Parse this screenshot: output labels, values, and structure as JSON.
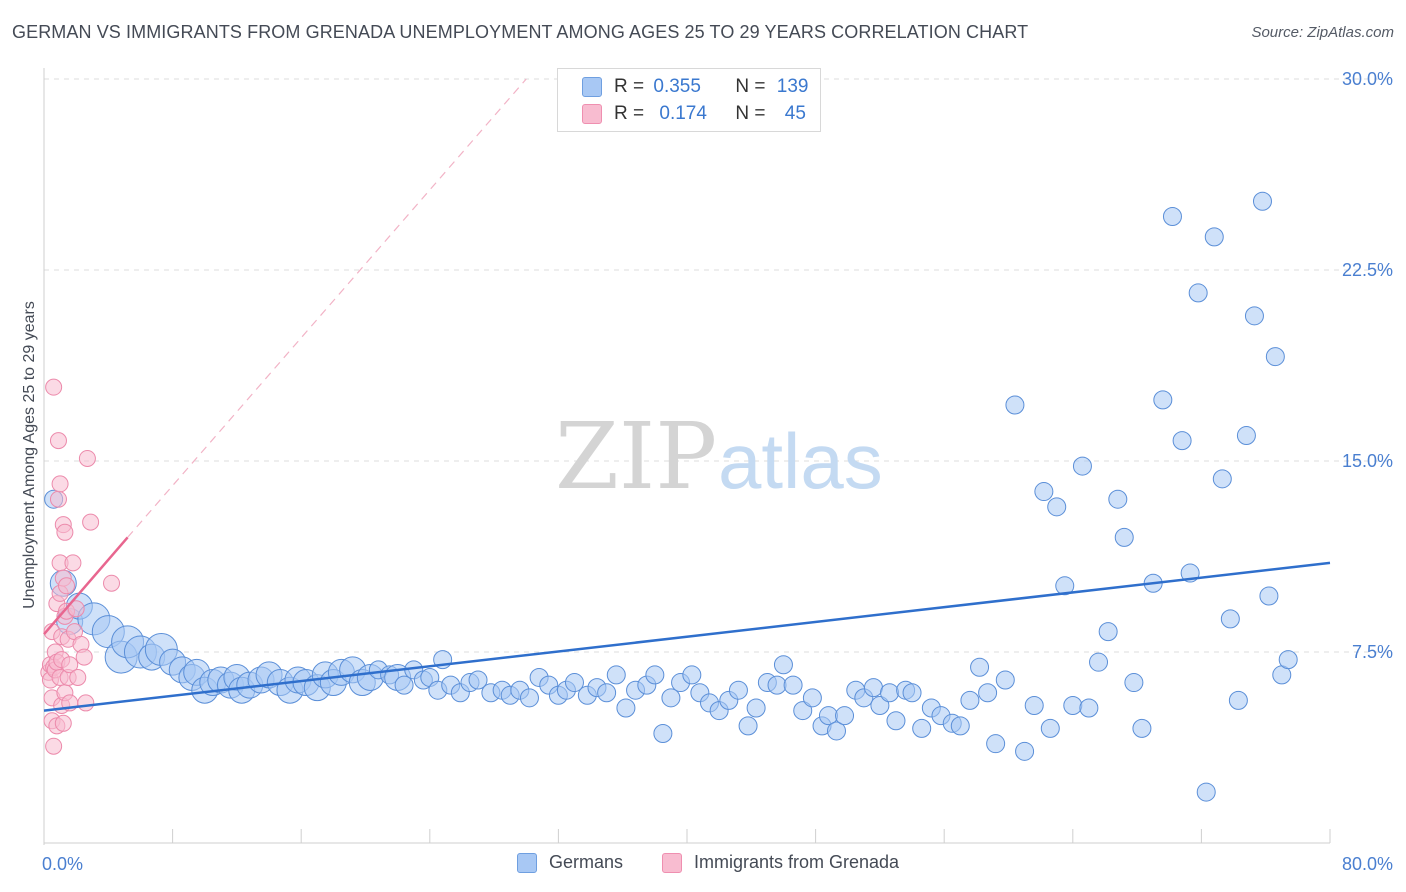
{
  "title": "GERMAN VS IMMIGRANTS FROM GRENADA UNEMPLOYMENT AMONG AGES 25 TO 29 YEARS CORRELATION CHART",
  "source": "Source: ZipAtlas.com",
  "watermark": {
    "zip": "ZIP",
    "atlas": "atlas"
  },
  "stats": [
    {
      "r_label": "R = ",
      "r": "0.355",
      "n_label": "N = ",
      "n": "139",
      "color": "#a8c8f4",
      "border": "#6f9fe0"
    },
    {
      "r_label": "R = ",
      "r": "0.174",
      "n_label": "N = ",
      "n": "45",
      "color": "#f8bcd0",
      "border": "#ef8fb0"
    }
  ],
  "legend": [
    {
      "label": "Germans",
      "color": "#a8c8f4",
      "border": "#6f9fe0"
    },
    {
      "label": "Immigrants from Grenada",
      "color": "#f8bcd0",
      "border": "#ef8fb0"
    }
  ],
  "chart_data": {
    "type": "scatter",
    "title": "GERMAN VS IMMIGRANTS FROM GRENADA UNEMPLOYMENT AMONG AGES 25 TO 29 YEARS CORRELATION CHART",
    "xlabel": "",
    "ylabel": "Unemployment Among Ages 25 to 29 years",
    "xlim": [
      0,
      80
    ],
    "ylim": [
      0,
      30
    ],
    "x_tick_labels": [
      "0.0%",
      "80.0%"
    ],
    "y_ticks": [
      7.5,
      15.0,
      22.5,
      30.0
    ],
    "y_tick_labels": [
      "7.5%",
      "15.0%",
      "22.5%",
      "30.0%"
    ],
    "grid": "horizontal dashed",
    "colors": {
      "germans_fill": "#a8c8f4",
      "germans_stroke": "#5b8fd8",
      "germans_line": "#2f6fcc",
      "grenada_fill": "#f8bcd0",
      "grenada_stroke": "#ec8aab",
      "grenada_line": "#e8668f"
    },
    "series": [
      {
        "name": "Germans",
        "points": [
          [
            0.6,
            13.5,
            1
          ],
          [
            1.2,
            10.2,
            2
          ],
          [
            1.6,
            8.7,
            2
          ],
          [
            2.2,
            9.3,
            2
          ],
          [
            3.1,
            8.8,
            3
          ],
          [
            4.0,
            8.3,
            3
          ],
          [
            4.8,
            7.3,
            3
          ],
          [
            5.2,
            7.9,
            3
          ],
          [
            6.0,
            7.5,
            3
          ],
          [
            6.7,
            7.3,
            2
          ],
          [
            7.3,
            7.6,
            3
          ],
          [
            8.0,
            7.1,
            2
          ],
          [
            8.6,
            6.8,
            2
          ],
          [
            9.2,
            6.5,
            2
          ],
          [
            9.5,
            6.7,
            2
          ],
          [
            10.0,
            6.0,
            2
          ],
          [
            10.5,
            6.3,
            2
          ],
          [
            11.0,
            6.4,
            2
          ],
          [
            11.6,
            6.2,
            2
          ],
          [
            12.0,
            6.5,
            2
          ],
          [
            12.3,
            6.0,
            2
          ],
          [
            12.8,
            6.2,
            2
          ],
          [
            13.5,
            6.4,
            2
          ],
          [
            14.0,
            6.6,
            2
          ],
          [
            14.7,
            6.3,
            2
          ],
          [
            15.3,
            6.0,
            2
          ],
          [
            15.8,
            6.4,
            2
          ],
          [
            16.3,
            6.3,
            2
          ],
          [
            17.0,
            6.1,
            2
          ],
          [
            17.5,
            6.6,
            2
          ],
          [
            18.0,
            6.3,
            2
          ],
          [
            18.5,
            6.7,
            2
          ],
          [
            19.2,
            6.8,
            2
          ],
          [
            19.8,
            6.3,
            2
          ],
          [
            20.3,
            6.5,
            2
          ],
          [
            20.8,
            6.8,
            1
          ],
          [
            21.5,
            6.6,
            1
          ],
          [
            22.0,
            6.5,
            2
          ],
          [
            22.4,
            6.2,
            1
          ],
          [
            23.0,
            6.8,
            1
          ],
          [
            23.6,
            6.4,
            1
          ],
          [
            24.0,
            6.5,
            1
          ],
          [
            24.5,
            6.0,
            1
          ],
          [
            24.8,
            7.2,
            1
          ],
          [
            25.3,
            6.2,
            1
          ],
          [
            25.9,
            5.9,
            1
          ],
          [
            26.5,
            6.3,
            1
          ],
          [
            27.0,
            6.4,
            1
          ],
          [
            27.8,
            5.9,
            1
          ],
          [
            28.5,
            6.0,
            1
          ],
          [
            29.0,
            5.8,
            1
          ],
          [
            29.6,
            6.0,
            1
          ],
          [
            30.2,
            5.7,
            1
          ],
          [
            30.8,
            6.5,
            1
          ],
          [
            31.4,
            6.2,
            1
          ],
          [
            32.0,
            5.8,
            1
          ],
          [
            32.5,
            6.0,
            1
          ],
          [
            33.0,
            6.3,
            1
          ],
          [
            33.8,
            5.8,
            1
          ],
          [
            34.4,
            6.1,
            1
          ],
          [
            35.0,
            5.9,
            1
          ],
          [
            35.6,
            6.6,
            1
          ],
          [
            36.2,
            5.3,
            1
          ],
          [
            36.8,
            6.0,
            1
          ],
          [
            37.5,
            6.2,
            1
          ],
          [
            38.0,
            6.6,
            1
          ],
          [
            38.5,
            4.3,
            1
          ],
          [
            39.0,
            5.7,
            1
          ],
          [
            39.6,
            6.3,
            1
          ],
          [
            40.3,
            6.6,
            1
          ],
          [
            40.8,
            5.9,
            1
          ],
          [
            41.4,
            5.5,
            1
          ],
          [
            42.0,
            5.2,
            1
          ],
          [
            42.6,
            5.6,
            1
          ],
          [
            43.2,
            6.0,
            1
          ],
          [
            43.8,
            4.6,
            1
          ],
          [
            44.3,
            5.3,
            1
          ],
          [
            45.0,
            6.3,
            1
          ],
          [
            45.6,
            6.2,
            1
          ],
          [
            46.0,
            7.0,
            1
          ],
          [
            46.6,
            6.2,
            1
          ],
          [
            47.2,
            5.2,
            1
          ],
          [
            47.8,
            5.7,
            1
          ],
          [
            48.4,
            4.6,
            1
          ],
          [
            48.8,
            5.0,
            1
          ],
          [
            49.3,
            4.4,
            1
          ],
          [
            49.8,
            5.0,
            1
          ],
          [
            50.5,
            6.0,
            1
          ],
          [
            51.0,
            5.7,
            1
          ],
          [
            51.6,
            6.1,
            1
          ],
          [
            52.0,
            5.4,
            1
          ],
          [
            52.6,
            5.9,
            1
          ],
          [
            53.0,
            4.8,
            1
          ],
          [
            53.6,
            6.0,
            1
          ],
          [
            54.0,
            5.9,
            1
          ],
          [
            54.6,
            4.5,
            1
          ],
          [
            55.2,
            5.3,
            1
          ],
          [
            55.8,
            5.0,
            1
          ],
          [
            56.5,
            4.7,
            1
          ],
          [
            57.0,
            4.6,
            1
          ],
          [
            57.6,
            5.6,
            1
          ],
          [
            58.2,
            6.9,
            1
          ],
          [
            58.7,
            5.9,
            1
          ],
          [
            59.2,
            3.9,
            1
          ],
          [
            59.8,
            6.4,
            1
          ],
          [
            60.4,
            17.2,
            1
          ],
          [
            61.0,
            3.6,
            1
          ],
          [
            61.6,
            5.4,
            1
          ],
          [
            62.2,
            13.8,
            1
          ],
          [
            62.6,
            4.5,
            1
          ],
          [
            63.0,
            13.2,
            1
          ],
          [
            63.5,
            10.1,
            1
          ],
          [
            64.0,
            5.4,
            1
          ],
          [
            64.6,
            14.8,
            1
          ],
          [
            65.0,
            5.3,
            1
          ],
          [
            65.6,
            7.1,
            1
          ],
          [
            66.2,
            8.3,
            1
          ],
          [
            66.8,
            13.5,
            1
          ],
          [
            67.2,
            12.0,
            1
          ],
          [
            67.8,
            6.3,
            1
          ],
          [
            68.3,
            4.5,
            1
          ],
          [
            69.0,
            10.2,
            1
          ],
          [
            69.6,
            17.4,
            1
          ],
          [
            70.2,
            24.6,
            1
          ],
          [
            70.8,
            15.8,
            1
          ],
          [
            71.3,
            10.6,
            1
          ],
          [
            71.8,
            21.6,
            1
          ],
          [
            72.3,
            2.0,
            1
          ],
          [
            72.8,
            23.8,
            1
          ],
          [
            73.3,
            14.3,
            1
          ],
          [
            73.8,
            8.8,
            1
          ],
          [
            74.3,
            5.6,
            1
          ],
          [
            74.8,
            16.0,
            1
          ],
          [
            75.3,
            20.7,
            1
          ],
          [
            75.8,
            25.2,
            1
          ],
          [
            76.2,
            9.7,
            1
          ],
          [
            76.6,
            19.1,
            1
          ],
          [
            77.0,
            6.6,
            1
          ],
          [
            77.4,
            7.2,
            1
          ]
        ]
      },
      {
        "name": "Immigrants from Grenada",
        "points": [
          [
            0.3,
            6.7
          ],
          [
            0.4,
            6.4
          ],
          [
            0.4,
            7.0
          ],
          [
            0.5,
            8.3
          ],
          [
            0.5,
            5.7
          ],
          [
            0.5,
            4.8
          ],
          [
            0.6,
            17.9
          ],
          [
            0.6,
            6.9
          ],
          [
            0.6,
            3.8
          ],
          [
            0.7,
            7.5
          ],
          [
            0.7,
            6.8
          ],
          [
            0.8,
            4.6
          ],
          [
            0.8,
            7.1
          ],
          [
            0.8,
            9.4
          ],
          [
            0.9,
            15.8
          ],
          [
            0.9,
            13.5
          ],
          [
            1.0,
            14.1
          ],
          [
            1.0,
            11.0
          ],
          [
            1.0,
            9.8
          ],
          [
            1.0,
            6.5
          ],
          [
            1.1,
            5.4
          ],
          [
            1.1,
            8.1
          ],
          [
            1.1,
            7.2
          ],
          [
            1.2,
            12.5
          ],
          [
            1.2,
            10.4
          ],
          [
            1.2,
            4.7
          ],
          [
            1.3,
            5.9
          ],
          [
            1.3,
            8.9
          ],
          [
            1.3,
            12.2
          ],
          [
            1.4,
            10.1
          ],
          [
            1.4,
            9.1
          ],
          [
            1.5,
            6.5
          ],
          [
            1.5,
            8.0
          ],
          [
            1.6,
            5.5
          ],
          [
            1.6,
            7.0
          ],
          [
            1.8,
            11.0
          ],
          [
            1.9,
            8.3
          ],
          [
            2.0,
            9.2
          ],
          [
            2.1,
            6.5
          ],
          [
            2.3,
            7.8
          ],
          [
            2.5,
            7.3
          ],
          [
            2.6,
            5.5
          ],
          [
            2.7,
            15.1
          ],
          [
            2.9,
            12.6
          ],
          [
            4.2,
            10.2
          ]
        ]
      }
    ],
    "trend_lines": [
      {
        "series": "Germans",
        "x": [
          0,
          80
        ],
        "y": [
          5.2,
          11.0
        ]
      },
      {
        "series": "Immigrants from Grenada",
        "x": [
          0,
          5.2
        ],
        "y": [
          8.2,
          12.0
        ],
        "extension_x": [
          5.2,
          30
        ],
        "extension_y": [
          12.0,
          30.0
        ]
      }
    ]
  }
}
